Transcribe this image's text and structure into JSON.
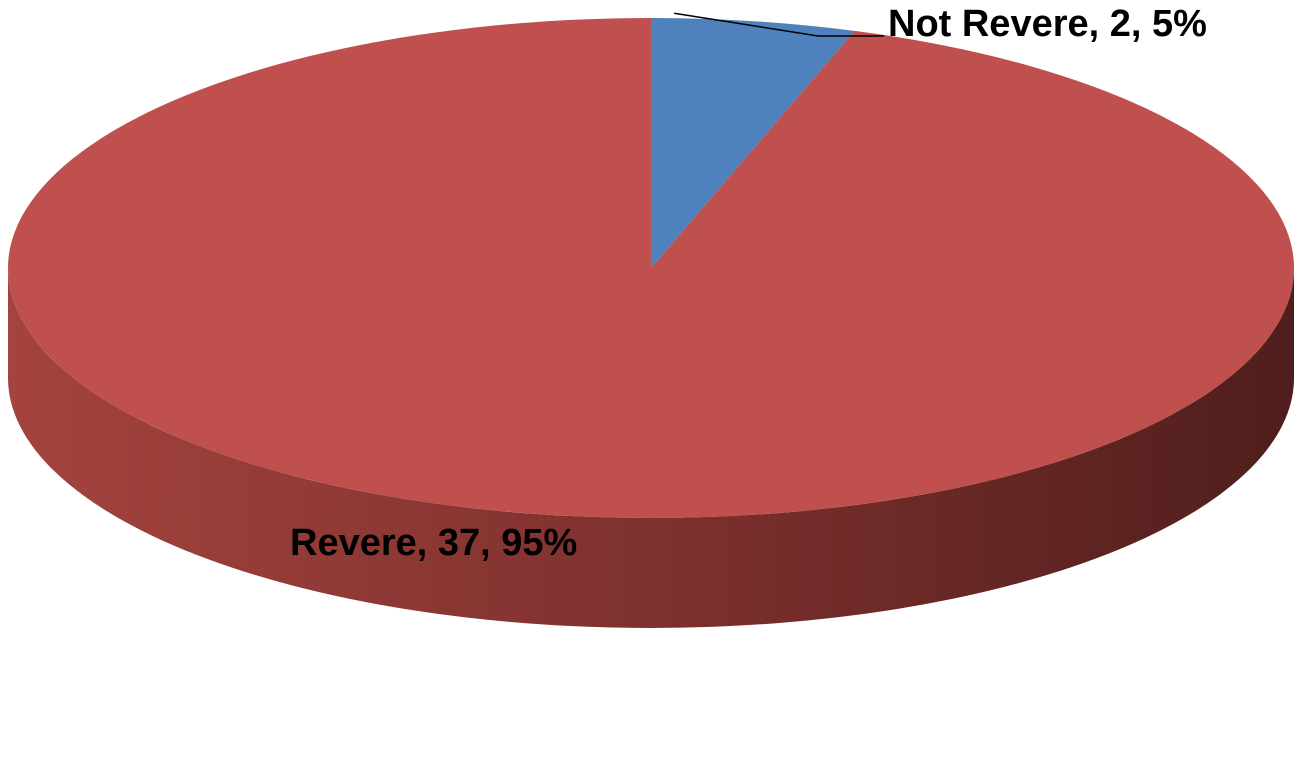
{
  "chart_data": {
    "type": "pie",
    "three_d": true,
    "start_angle_deg": 0,
    "direction": "clockwise",
    "slices": [
      {
        "name": "Not Revere",
        "value": 2,
        "percent": 5,
        "label": "Not Revere, 2, 5%",
        "color": "#4F81BD",
        "side_color_light": "#3A6596",
        "side_color_dark": "#1F3A5C"
      },
      {
        "name": "Revere",
        "value": 37,
        "percent": 95,
        "label": "Revere, 37, 95%",
        "color": "#C0504D",
        "side_color_light": "#A4433F",
        "side_color_dark": "#4F1E1C"
      }
    ],
    "legend": "none"
  }
}
